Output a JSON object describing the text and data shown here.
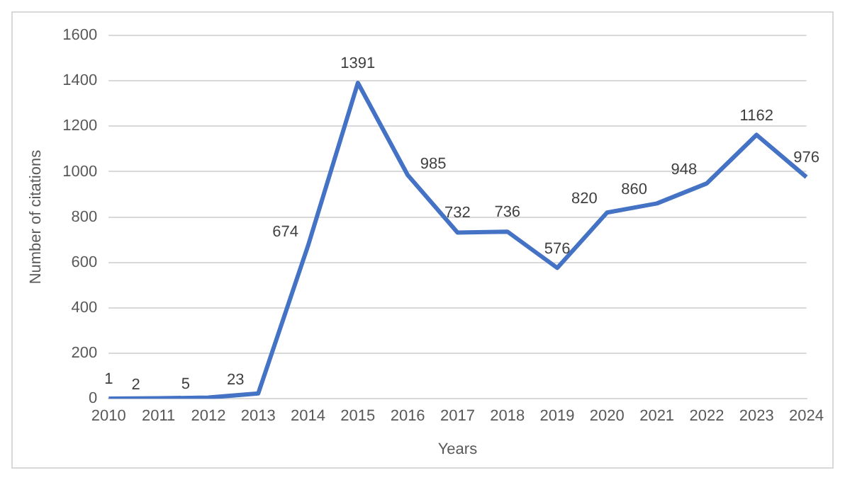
{
  "chart_data": {
    "type": "line",
    "xlabel": "Years",
    "ylabel": "Number of citations",
    "categories": [
      "2010",
      "2011",
      "2012",
      "2013",
      "2014",
      "2015",
      "2016",
      "2017",
      "2018",
      "2019",
      "2020",
      "2021",
      "2022",
      "2023",
      "2024"
    ],
    "series": [
      {
        "color": "#4472c4",
        "values": [
          1,
          2,
          5,
          23,
          674,
          1391,
          985,
          732,
          736,
          576,
          820,
          860,
          948,
          1162,
          976
        ]
      }
    ],
    "ylim": [
      0,
      1600
    ],
    "yticks": [
      0,
      200,
      400,
      600,
      800,
      1000,
      1200,
      1400,
      1600
    ],
    "grid": "y",
    "data_labels": true,
    "legend": false,
    "marker": "none"
  }
}
